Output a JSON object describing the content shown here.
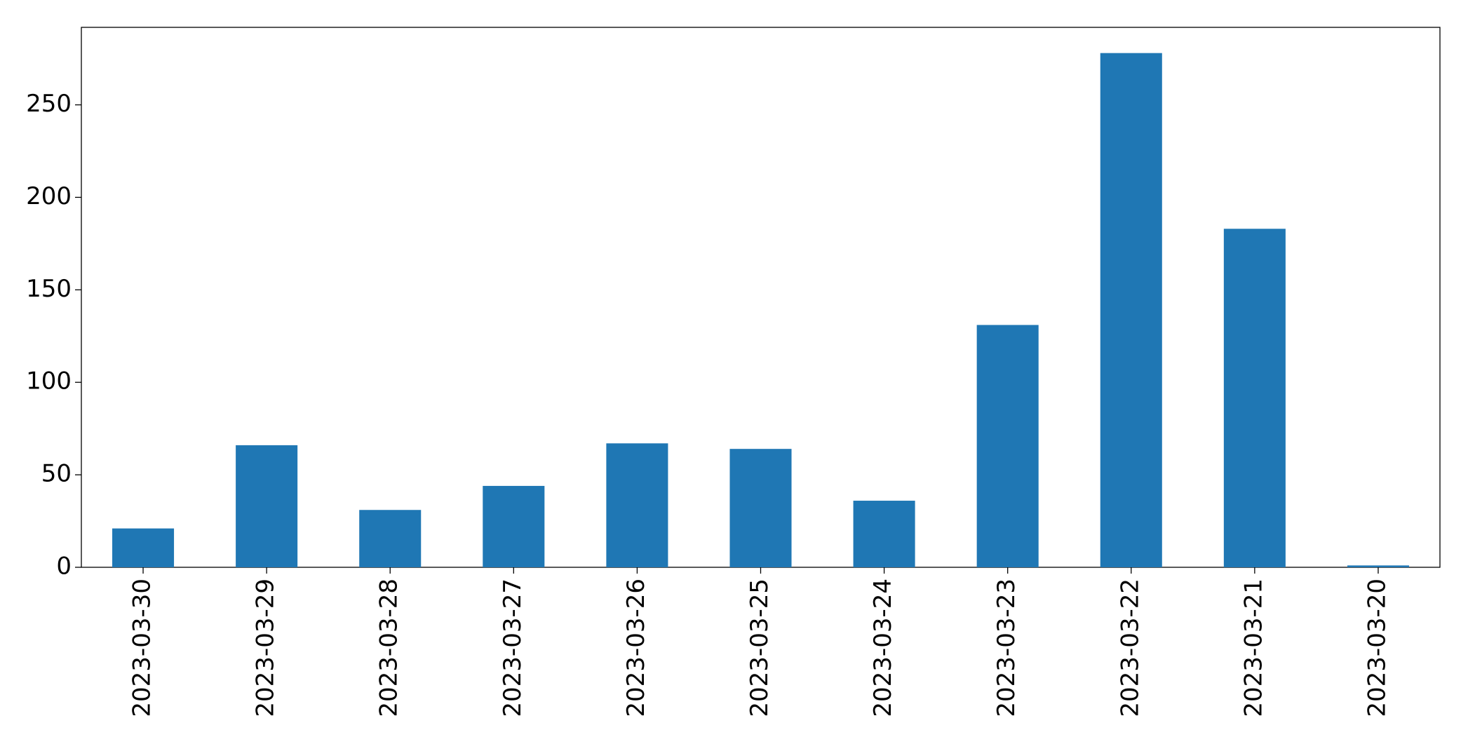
{
  "chart_data": {
    "type": "bar",
    "categories": [
      "2023-03-30",
      "2023-03-29",
      "2023-03-28",
      "2023-03-27",
      "2023-03-26",
      "2023-03-25",
      "2023-03-24",
      "2023-03-23",
      "2023-03-22",
      "2023-03-21",
      "2023-03-20"
    ],
    "values": [
      21,
      66,
      31,
      44,
      67,
      64,
      36,
      131,
      278,
      183,
      1
    ],
    "color": "#1f77b4",
    "ylim": [
      0,
      291.9
    ],
    "yticks": [
      0,
      50,
      100,
      150,
      200,
      250
    ],
    "grid": false
  }
}
